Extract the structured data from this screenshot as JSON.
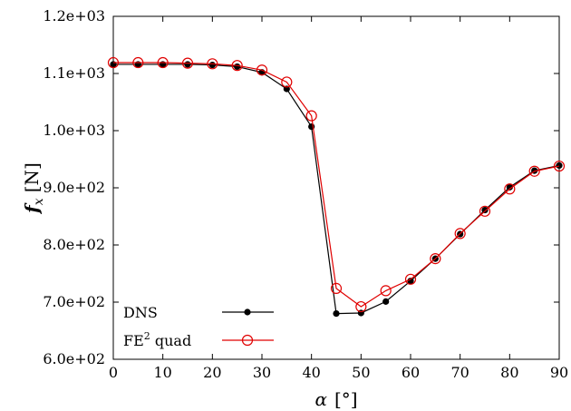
{
  "chart_data": {
    "type": "line",
    "title": "",
    "xlabel_symbol": "α",
    "xlabel_unit": "[°]",
    "ylabel_symbol": "f",
    "ylabel_subscript": "x",
    "ylabel_unit": "[N]",
    "xlim": [
      0,
      90
    ],
    "ylim": [
      600,
      1200
    ],
    "grid": false,
    "legend_position": "bottom-left",
    "x_ticks": [
      0,
      10,
      20,
      30,
      40,
      50,
      60,
      70,
      80,
      90
    ],
    "x_tick_labels": [
      "0",
      "10",
      "20",
      "30",
      "40",
      "50",
      "60",
      "70",
      "80",
      "90"
    ],
    "y_ticks": [
      600,
      700,
      800,
      900,
      1000,
      1100,
      1200
    ],
    "y_tick_labels": [
      "6.0e+02",
      "7.0e+02",
      "8.0e+02",
      "9.0e+02",
      "1.0e+03",
      "1.1e+03",
      "1.2e+03"
    ],
    "x": [
      0,
      5,
      10,
      15,
      20,
      25,
      30,
      35,
      40,
      45,
      50,
      55,
      60,
      65,
      70,
      75,
      80,
      85,
      90
    ],
    "series": [
      {
        "name": "DNS",
        "color": "#000000",
        "marker": "filled-circle",
        "values": [
          1116,
          1116,
          1116,
          1116,
          1115,
          1112,
          1102,
          1073,
          1007,
          680,
          681,
          701,
          737,
          776,
          819,
          861,
          901,
          930,
          939
        ]
      },
      {
        "name": "FE² quad",
        "label_main": "FE",
        "label_sup": "2",
        "label_rest": " quad",
        "color": "#e00000",
        "marker": "open-circle",
        "values": [
          1119,
          1119,
          1119,
          1118,
          1117,
          1114,
          1106,
          1085,
          1026,
          724,
          692,
          720,
          740,
          776,
          820,
          859,
          898,
          929,
          938
        ]
      }
    ]
  }
}
